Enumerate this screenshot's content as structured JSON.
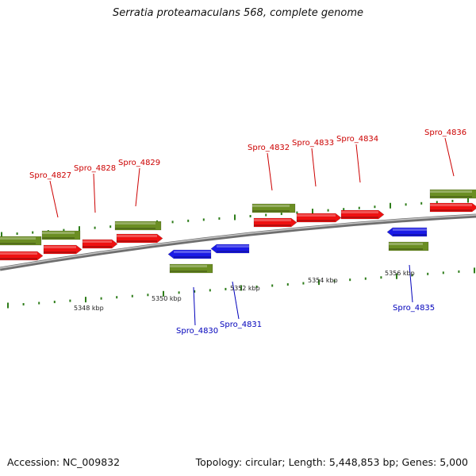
{
  "title": "Serratia proteamaculans 568, complete genome",
  "footer": {
    "accession": "Accession: NC_009832",
    "summary": "Topology: circular; Length: 5,448,853 bp; Genes: 5,000"
  },
  "colors": {
    "forward_cds": "#ee1111",
    "reverse_cds": "#1a1ae6",
    "gene": "#6b8e23",
    "backbone": "#8c8c8c",
    "forward_label": "#cc0000",
    "reverse_label": "#0000bb",
    "ticks": "#2e7d1a"
  },
  "genome_scale": {
    "labels": [
      "5348 kbp",
      "5350 kbp",
      "5352 kbp",
      "5354 kbp",
      "5356 kbp"
    ]
  },
  "forward_genes": [
    {
      "locus": "Spro_4827"
    },
    {
      "locus": "Spro_4828"
    },
    {
      "locus": "Spro_4829"
    },
    {
      "locus": "Spro_4832"
    },
    {
      "locus": "Spro_4833"
    },
    {
      "locus": "Spro_4834"
    },
    {
      "locus": "Spro_4836"
    }
  ],
  "reverse_genes": [
    {
      "locus": "Spro_4830"
    },
    {
      "locus": "Spro_4831"
    },
    {
      "locus": "Spro_4835"
    }
  ]
}
